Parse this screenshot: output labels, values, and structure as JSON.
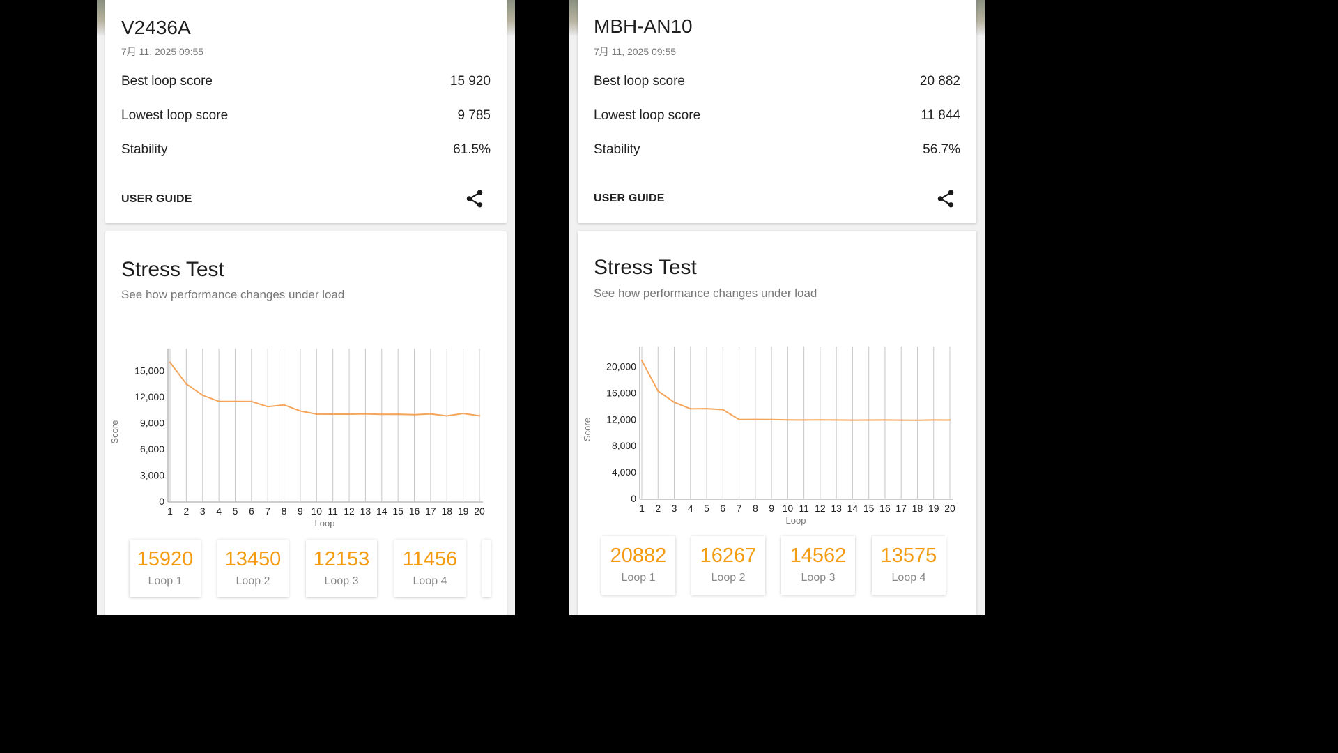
{
  "phones": [
    {
      "device_name": "V2436A",
      "date": "7月 11, 2025 09:55",
      "best_loop_label": "Best loop score",
      "best_loop_value": "15 920",
      "lowest_loop_label": "Lowest loop score",
      "lowest_loop_value": "9 785",
      "stability_label": "Stability",
      "stability_value": "61.5%",
      "user_guide_label": "USER GUIDE",
      "share_icon": "share-icon",
      "stress_title": "Stress Test",
      "stress_subtitle": "See how performance changes under load",
      "loop_tiles": [
        {
          "score": "15920",
          "label": "Loop 1"
        },
        {
          "score": "13450",
          "label": "Loop 2"
        },
        {
          "score": "12153",
          "label": "Loop 3"
        },
        {
          "score": "11456",
          "label": "Loop 4"
        }
      ]
    },
    {
      "device_name": "MBH-AN10",
      "date": "7月 11, 2025 09:55",
      "best_loop_label": "Best loop score",
      "best_loop_value": "20 882",
      "lowest_loop_label": "Lowest loop score",
      "lowest_loop_value": "11 844",
      "stability_label": "Stability",
      "stability_value": "56.7%",
      "user_guide_label": "USER GUIDE",
      "share_icon": "share-icon",
      "stress_title": "Stress Test",
      "stress_subtitle": "See how performance changes under load",
      "loop_tiles": [
        {
          "score": "20882",
          "label": "Loop 1"
        },
        {
          "score": "16267",
          "label": "Loop 2"
        },
        {
          "score": "14562",
          "label": "Loop 3"
        },
        {
          "score": "13575",
          "label": "Loop 4"
        }
      ]
    }
  ],
  "chart_data": [
    {
      "type": "line",
      "xlabel": "Loop",
      "ylabel": "Score",
      "ylim": [
        0,
        17500
      ],
      "yticks": [
        0,
        3000,
        6000,
        9000,
        12000,
        15000
      ],
      "ytick_labels": [
        "0",
        "3,000",
        "6,000",
        "9,000",
        "12,000",
        "15,000"
      ],
      "x": [
        1,
        2,
        3,
        4,
        5,
        6,
        7,
        8,
        9,
        10,
        11,
        12,
        13,
        14,
        15,
        16,
        17,
        18,
        19,
        20
      ],
      "series": [
        {
          "values": [
            15920,
            13450,
            12153,
            11456,
            11450,
            11440,
            10850,
            11050,
            10350,
            10000,
            9990,
            9985,
            10020,
            9970,
            9975,
            9930,
            10020,
            9785,
            10070,
            9800
          ]
        }
      ],
      "line_color": "#f5a55a",
      "grid": "vertical"
    },
    {
      "type": "line",
      "xlabel": "Loop",
      "ylabel": "Score",
      "ylim": [
        0,
        23000
      ],
      "yticks": [
        0,
        4000,
        8000,
        12000,
        16000,
        20000
      ],
      "ytick_labels": [
        "0",
        "4,000",
        "8,000",
        "12,000",
        "16,000",
        "20,000"
      ],
      "x": [
        1,
        2,
        3,
        4,
        5,
        6,
        7,
        8,
        9,
        10,
        11,
        12,
        13,
        14,
        15,
        16,
        17,
        18,
        19,
        20
      ],
      "series": [
        {
          "values": [
            20882,
            16267,
            14562,
            13575,
            13600,
            13450,
            11950,
            11960,
            11950,
            11890,
            11880,
            11890,
            11880,
            11860,
            11870,
            11880,
            11860,
            11844,
            11880,
            11870
          ]
        }
      ],
      "line_color": "#f5a55a",
      "grid": "vertical"
    }
  ],
  "colors": {
    "accent_orange": "#f39c12",
    "chart_line": "#f5a55a",
    "background": "#f1f1f1",
    "card": "#ffffff"
  }
}
